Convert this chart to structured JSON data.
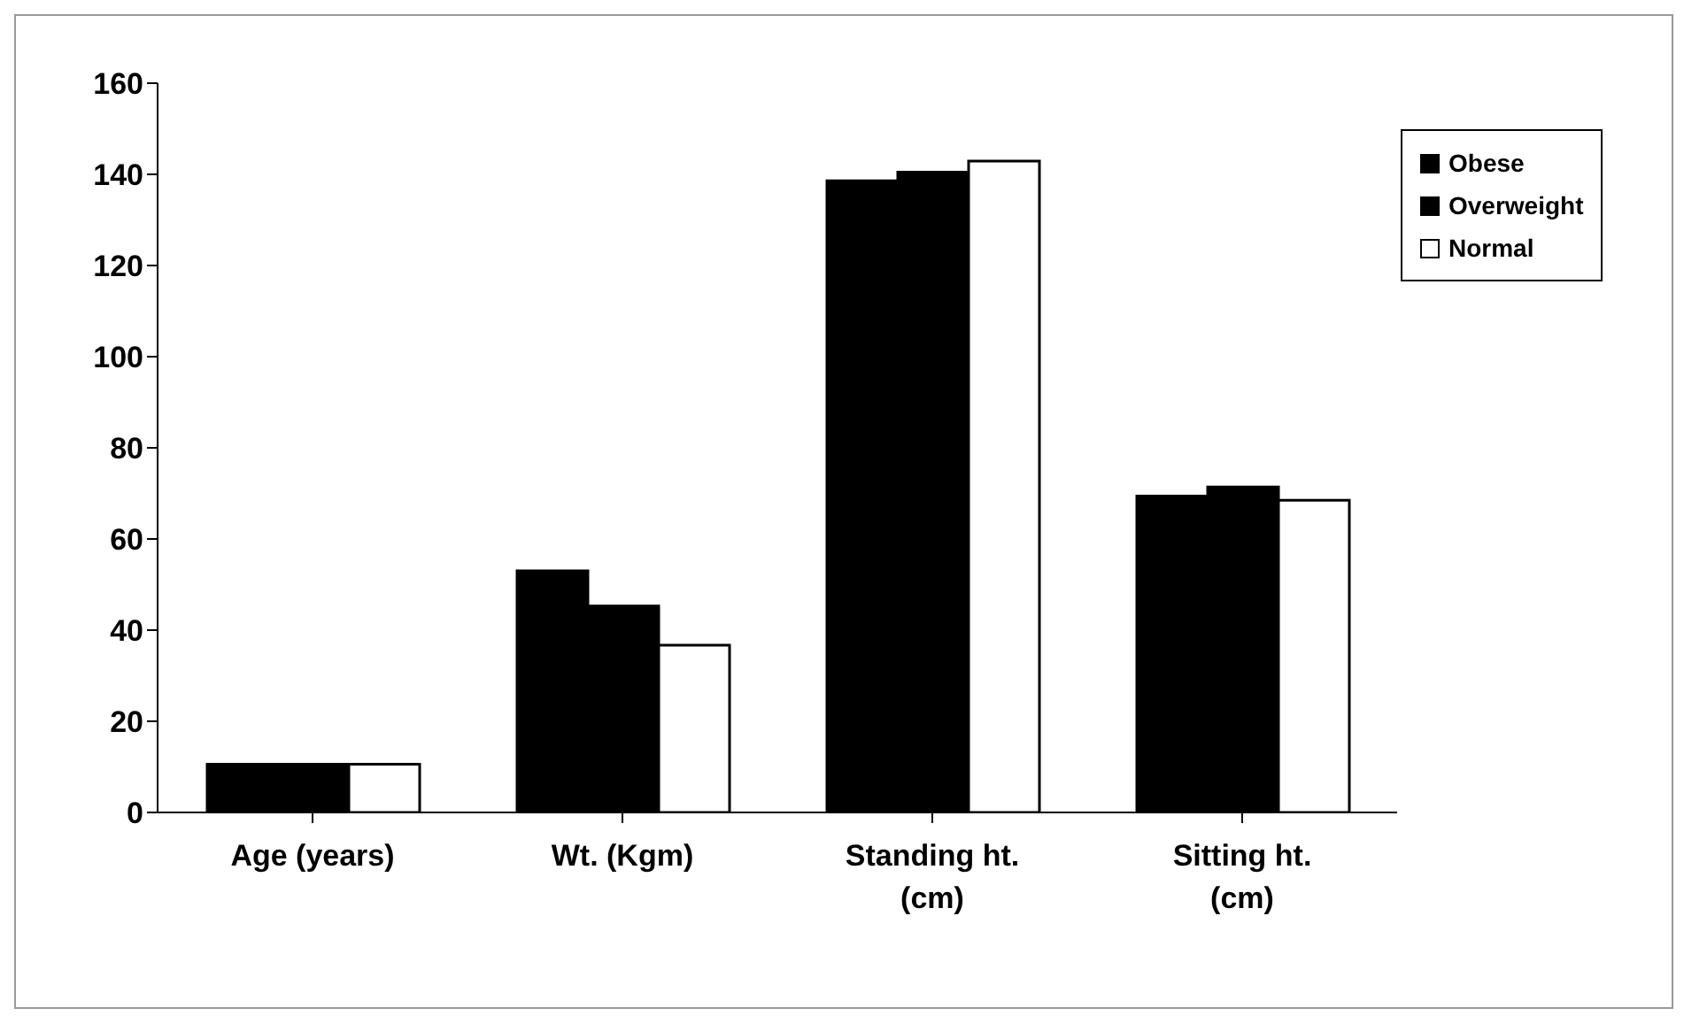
{
  "chart_data": {
    "type": "bar",
    "categories": [
      "Age (years)",
      "Wt. (Kgm)",
      "Standing ht. (cm)",
      "Sitting ht. (cm)"
    ],
    "series": [
      {
        "name": "Obese",
        "color": "#000000",
        "values": [
          10.6,
          53,
          138.6,
          69.4
        ]
      },
      {
        "name": "Overweight",
        "color": "#000000",
        "values": [
          10.6,
          45.3,
          140.5,
          71.4
        ]
      },
      {
        "name": "Normal",
        "color": "#ffffff",
        "values": [
          10.6,
          36.7,
          142.9,
          68.5
        ]
      }
    ],
    "ylim": [
      0,
      160
    ],
    "yticks": [
      0,
      20,
      40,
      60,
      80,
      100,
      120,
      140,
      160
    ],
    "grid": false,
    "legend": "top right"
  }
}
